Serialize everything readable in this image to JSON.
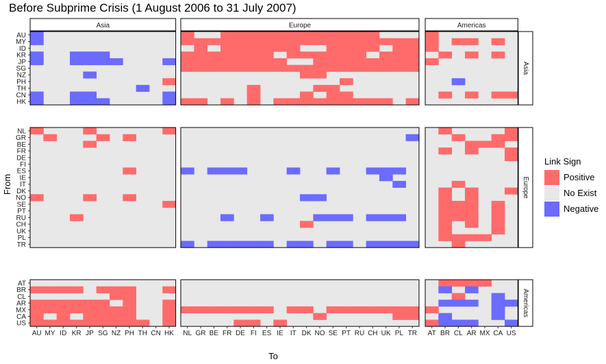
{
  "chart_data": {
    "type": "heatmap",
    "title": "Before Subprime Crisis (1 August 2006 to 31 July 2007)",
    "xlabel": "To",
    "ylabel": "From",
    "groups": [
      {
        "name": "Asia",
        "countries": [
          "AU",
          "MY",
          "ID",
          "KR",
          "JP",
          "SG",
          "NZ",
          "PH",
          "TH",
          "CN",
          "HK"
        ]
      },
      {
        "name": "Europe",
        "countries": [
          "NL",
          "GR",
          "BE",
          "FR",
          "DE",
          "FI",
          "ES",
          "IE",
          "IT",
          "DK",
          "NO",
          "SE",
          "PT",
          "RU",
          "CH",
          "UK",
          "PL",
          "TR"
        ]
      },
      {
        "name": "Americas",
        "countries": [
          "AT",
          "BR",
          "CL",
          "AR",
          "MX",
          "CA",
          "US"
        ]
      }
    ],
    "legend": {
      "title": "Link Sign",
      "position": "right",
      "entries": [
        {
          "label": "Positive",
          "value": 1,
          "color": "#ff6b6b"
        },
        {
          "label": "No Exist",
          "value": 0,
          "color": "#e8e8e8"
        },
        {
          "label": "Negative",
          "value": -1,
          "color": "#6b6bff"
        }
      ]
    },
    "cell_values": {
      "positive": 1,
      "none": 0,
      "negative": -1
    },
    "matrix": [
      [
        -1,
        0,
        0,
        0,
        0,
        0,
        0,
        0,
        0,
        0,
        0,
        1,
        0,
        0,
        1,
        1,
        1,
        1,
        1,
        1,
        1,
        1,
        1,
        1,
        1,
        1,
        0,
        0,
        0,
        1,
        0,
        0,
        0,
        0,
        0,
        0
      ],
      [
        -1,
        0,
        0,
        0,
        0,
        0,
        0,
        0,
        0,
        0,
        0,
        1,
        1,
        1,
        1,
        1,
        1,
        1,
        1,
        1,
        1,
        1,
        1,
        1,
        1,
        1,
        1,
        1,
        1,
        1,
        0,
        1,
        1,
        0,
        1,
        0
      ],
      [
        0,
        0,
        0,
        0,
        0,
        0,
        0,
        0,
        0,
        0,
        0,
        0,
        1,
        0,
        1,
        1,
        1,
        1,
        1,
        1,
        0,
        0,
        1,
        1,
        1,
        1,
        0,
        1,
        1,
        1,
        0,
        0,
        0,
        0,
        0,
        0
      ],
      [
        -1,
        0,
        0,
        -1,
        -1,
        -1,
        0,
        0,
        0,
        0,
        0,
        1,
        1,
        1,
        1,
        1,
        1,
        1,
        0,
        1,
        1,
        1,
        1,
        1,
        1,
        0,
        1,
        1,
        1,
        0,
        1,
        0,
        1,
        0,
        1,
        0
      ],
      [
        -1,
        0,
        0,
        -1,
        -1,
        -1,
        -1,
        0,
        0,
        0,
        -1,
        1,
        1,
        1,
        1,
        1,
        1,
        1,
        1,
        0,
        0,
        1,
        1,
        1,
        1,
        1,
        1,
        1,
        1,
        1,
        0,
        0,
        0,
        0,
        0,
        0
      ],
      [
        0,
        0,
        0,
        0,
        0,
        0,
        0,
        0,
        0,
        0,
        0,
        1,
        1,
        1,
        1,
        1,
        1,
        1,
        1,
        1,
        1,
        1,
        1,
        1,
        1,
        1,
        1,
        1,
        1,
        0,
        0,
        0,
        0,
        0,
        0,
        0
      ],
      [
        0,
        0,
        0,
        0,
        -1,
        0,
        0,
        0,
        0,
        0,
        0,
        0,
        0,
        0,
        0,
        0,
        0,
        0,
        0,
        0,
        1,
        1,
        0,
        0,
        0,
        0,
        0,
        0,
        0,
        0,
        0,
        0,
        0,
        0,
        0,
        0
      ],
      [
        0,
        0,
        0,
        0,
        0,
        0,
        0,
        0,
        0,
        0,
        1,
        0,
        0,
        0,
        0,
        0,
        0,
        0,
        0,
        0,
        0,
        0,
        0,
        1,
        0,
        0,
        0,
        0,
        0,
        0,
        0,
        -1,
        0,
        0,
        0,
        0
      ],
      [
        0,
        0,
        0,
        0,
        0,
        0,
        0,
        0,
        -1,
        0,
        0,
        0,
        0,
        0,
        0,
        0,
        1,
        0,
        0,
        0,
        0,
        1,
        1,
        0,
        0,
        0,
        0,
        0,
        0,
        0,
        0,
        0,
        0,
        0,
        0,
        0
      ],
      [
        -1,
        0,
        0,
        -1,
        -1,
        0,
        0,
        0,
        0,
        0,
        -1,
        0,
        0,
        0,
        0,
        0,
        1,
        0,
        0,
        0,
        1,
        0,
        1,
        1,
        0,
        0,
        0,
        0,
        0,
        0,
        1,
        0,
        1,
        0,
        1,
        1
      ],
      [
        -1,
        0,
        0,
        -1,
        -1,
        -1,
        0,
        0,
        0,
        0,
        -1,
        1,
        1,
        0,
        1,
        0,
        1,
        0,
        1,
        1,
        1,
        1,
        1,
        1,
        1,
        1,
        1,
        0,
        1,
        0,
        0,
        0,
        0,
        0,
        0,
        0
      ],
      [
        1,
        0,
        0,
        0,
        1,
        0,
        0,
        0,
        0,
        0,
        1,
        0,
        0,
        0,
        0,
        0,
        0,
        0,
        0,
        0,
        0,
        0,
        0,
        0,
        0,
        0,
        0,
        0,
        0,
        0,
        1,
        0,
        0,
        0,
        0,
        1
      ],
      [
        0,
        1,
        0,
        0,
        0,
        1,
        0,
        1,
        0,
        0,
        0,
        0,
        0,
        0,
        0,
        0,
        0,
        0,
        0,
        0,
        0,
        0,
        0,
        0,
        0,
        0,
        0,
        0,
        -1,
        0,
        0,
        1,
        0,
        0,
        1,
        1
      ],
      [
        0,
        0,
        0,
        0,
        1,
        0,
        0,
        0,
        0,
        0,
        0,
        0,
        0,
        0,
        0,
        0,
        0,
        0,
        0,
        0,
        0,
        0,
        0,
        0,
        0,
        0,
        0,
        0,
        0,
        0,
        0,
        0,
        1,
        1,
        1,
        0
      ],
      [
        0,
        0,
        0,
        0,
        0,
        0,
        0,
        0,
        0,
        0,
        0,
        0,
        0,
        0,
        0,
        0,
        0,
        0,
        0,
        0,
        0,
        0,
        0,
        0,
        0,
        0,
        0,
        0,
        0,
        0,
        1,
        0,
        1,
        0,
        0,
        1
      ],
      [
        0,
        0,
        0,
        0,
        0,
        0,
        0,
        0,
        0,
        0,
        0,
        0,
        0,
        0,
        0,
        0,
        0,
        0,
        0,
        0,
        0,
        0,
        0,
        0,
        0,
        0,
        0,
        0,
        0,
        0,
        0,
        0,
        0,
        0,
        0,
        1
      ],
      [
        0,
        0,
        0,
        0,
        0,
        0,
        0,
        0,
        0,
        0,
        0,
        0,
        0,
        0,
        0,
        0,
        0,
        0,
        0,
        0,
        0,
        0,
        0,
        0,
        0,
        0,
        0,
        0,
        0,
        0,
        0,
        0,
        0,
        0,
        0,
        0
      ],
      [
        0,
        0,
        0,
        0,
        0,
        0,
        0,
        1,
        0,
        0,
        0,
        -1,
        0,
        -1,
        -1,
        -1,
        0,
        0,
        0,
        -1,
        0,
        0,
        -1,
        0,
        0,
        -1,
        -1,
        -1,
        0,
        0,
        0,
        0,
        0,
        0,
        0,
        0
      ],
      [
        0,
        0,
        0,
        0,
        0,
        0,
        0,
        0,
        0,
        0,
        0,
        0,
        0,
        0,
        0,
        0,
        0,
        0,
        0,
        0,
        0,
        0,
        0,
        0,
        0,
        0,
        -1,
        0,
        0,
        0,
        0,
        0,
        0,
        0,
        0,
        0
      ],
      [
        0,
        0,
        0,
        0,
        0,
        0,
        0,
        0,
        0,
        0,
        0,
        0,
        0,
        0,
        0,
        0,
        0,
        0,
        0,
        0,
        0,
        0,
        0,
        0,
        0,
        0,
        0,
        -1,
        0,
        0,
        0,
        1,
        0,
        0,
        0,
        0
      ],
      [
        0,
        0,
        0,
        0,
        0,
        0,
        0,
        0,
        0,
        0,
        0,
        0,
        0,
        0,
        0,
        0,
        0,
        0,
        0,
        0,
        0,
        0,
        0,
        0,
        0,
        0,
        0,
        0,
        0,
        0,
        1,
        0,
        1,
        0,
        0,
        1
      ],
      [
        1,
        0,
        0,
        0,
        1,
        0,
        0,
        1,
        0,
        0,
        0,
        0,
        0,
        0,
        0,
        0,
        0,
        0,
        0,
        0,
        -1,
        -1,
        0,
        0,
        0,
        0,
        0,
        0,
        0,
        0,
        1,
        0,
        1,
        0,
        0,
        0
      ],
      [
        0,
        0,
        0,
        0,
        0,
        0,
        0,
        0,
        0,
        0,
        1,
        0,
        0,
        0,
        0,
        0,
        0,
        0,
        0,
        0,
        0,
        0,
        0,
        0,
        0,
        0,
        0,
        0,
        0,
        0,
        1,
        1,
        1,
        0,
        1,
        0
      ],
      [
        0,
        0,
        0,
        0,
        0,
        0,
        0,
        0,
        0,
        0,
        0,
        0,
        0,
        0,
        0,
        0,
        0,
        0,
        0,
        0,
        0,
        0,
        0,
        0,
        0,
        0,
        0,
        0,
        0,
        0,
        1,
        1,
        1,
        0,
        1,
        0
      ],
      [
        0,
        0,
        0,
        1,
        0,
        0,
        0,
        0,
        0,
        0,
        0,
        0,
        0,
        0,
        -1,
        0,
        0,
        -1,
        0,
        0,
        0,
        -1,
        -1,
        -1,
        0,
        -1,
        -1,
        -1,
        0,
        0,
        1,
        1,
        1,
        0,
        1,
        0
      ],
      [
        0,
        0,
        0,
        0,
        0,
        0,
        0,
        0,
        0,
        0,
        0,
        0,
        0,
        0,
        0,
        0,
        0,
        0,
        0,
        0,
        1,
        0,
        0,
        0,
        0,
        0,
        0,
        0,
        0,
        0,
        1,
        0,
        1,
        0,
        1,
        0
      ],
      [
        0,
        0,
        0,
        0,
        0,
        0,
        0,
        0,
        0,
        0,
        0,
        0,
        0,
        0,
        0,
        0,
        0,
        0,
        0,
        0,
        0,
        0,
        0,
        0,
        0,
        0,
        0,
        0,
        0,
        0,
        1,
        0,
        0,
        0,
        1,
        0
      ],
      [
        0,
        0,
        0,
        0,
        0,
        0,
        0,
        0,
        0,
        0,
        0,
        0,
        0,
        0,
        0,
        0,
        0,
        0,
        0,
        0,
        0,
        0,
        0,
        0,
        0,
        0,
        0,
        0,
        0,
        0,
        1,
        1,
        1,
        1,
        0,
        0
      ],
      [
        0,
        0,
        0,
        0,
        0,
        0,
        0,
        0,
        0,
        0,
        0,
        -1,
        0,
        -1,
        -1,
        -1,
        -1,
        -1,
        0,
        -1,
        -1,
        0,
        -1,
        -1,
        0,
        -1,
        -1,
        -1,
        -1,
        0,
        0,
        1,
        0,
        0,
        0,
        0
      ],
      [
        0,
        0,
        0,
        0,
        0,
        0,
        0,
        0,
        0,
        0,
        0,
        0,
        0,
        0,
        0,
        0,
        0,
        0,
        0,
        0,
        0,
        0,
        0,
        0,
        0,
        0,
        0,
        0,
        0,
        0,
        1,
        1,
        1,
        1,
        0,
        0
      ],
      [
        1,
        1,
        1,
        1,
        0,
        1,
        1,
        1,
        0,
        0,
        1,
        0,
        0,
        0,
        0,
        0,
        0,
        0,
        0,
        0,
        0,
        0,
        0,
        0,
        0,
        0,
        0,
        0,
        0,
        0,
        -1,
        0,
        -1,
        0,
        0,
        0
      ],
      [
        0,
        0,
        0,
        0,
        0,
        0,
        1,
        1,
        0,
        0,
        0,
        0,
        0,
        0,
        0,
        0,
        0,
        0,
        0,
        0,
        0,
        0,
        0,
        0,
        0,
        0,
        0,
        0,
        0,
        0,
        0,
        1,
        0,
        0,
        -1,
        0
      ],
      [
        1,
        1,
        1,
        1,
        1,
        1,
        0,
        1,
        0,
        0,
        1,
        0,
        0,
        0,
        0,
        0,
        0,
        0,
        0,
        0,
        0,
        0,
        0,
        0,
        0,
        0,
        0,
        0,
        0,
        0,
        -1,
        -1,
        -1,
        0,
        -1,
        -1
      ],
      [
        1,
        1,
        1,
        1,
        1,
        1,
        1,
        1,
        0,
        0,
        1,
        1,
        1,
        1,
        1,
        1,
        1,
        1,
        0,
        1,
        1,
        0,
        1,
        1,
        1,
        1,
        1,
        1,
        1,
        1,
        0,
        0,
        0,
        0,
        -1,
        0
      ],
      [
        1,
        0,
        1,
        0,
        1,
        1,
        1,
        1,
        0,
        0,
        1,
        0,
        0,
        0,
        0,
        0,
        0,
        0,
        0,
        0,
        0,
        1,
        0,
        0,
        0,
        0,
        0,
        1,
        1,
        0,
        -1,
        0,
        0,
        0,
        -1,
        0
      ],
      [
        1,
        1,
        1,
        1,
        1,
        1,
        1,
        1,
        1,
        0,
        1,
        0,
        0,
        0,
        0,
        1,
        1,
        0,
        1,
        0,
        0,
        0,
        0,
        0,
        0,
        0,
        0,
        0,
        0,
        1,
        -1,
        -1,
        -1,
        0,
        0,
        -1
      ]
    ]
  }
}
